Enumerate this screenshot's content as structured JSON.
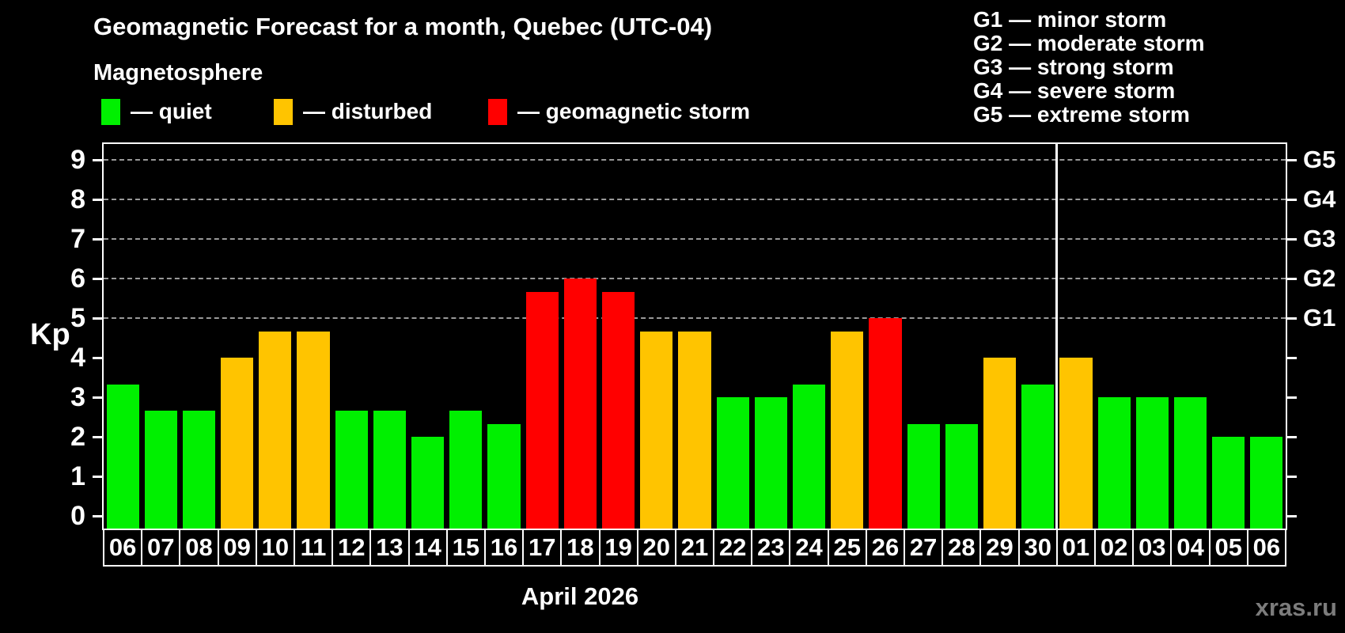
{
  "header": {
    "title": "Geomagnetic Forecast for a month, Quebec (UTC-04)",
    "subtitle": "Magnetosphere"
  },
  "legend": {
    "items": [
      {
        "label": "— quiet",
        "state": "quiet"
      },
      {
        "label": "— disturbed",
        "state": "disturbed"
      },
      {
        "label": "— geomagnetic storm",
        "state": "storm"
      }
    ]
  },
  "storm_scale_legend": {
    "items": [
      "G1 — minor storm",
      "G2 — moderate storm",
      "G3 — strong storm",
      "G4 — severe storm",
      "G5 — extreme storm"
    ]
  },
  "colors": {
    "quiet": "#00f000",
    "disturbed": "#ffc400",
    "storm": "#ff0000",
    "grid": "#999999",
    "axis": "#ffffff",
    "background": "#000000",
    "watermark": "#7c7c7c"
  },
  "chart_data": {
    "type": "bar",
    "title": "Geomagnetic Forecast for a month, Quebec (UTC-04)",
    "subtitle": "Magnetosphere",
    "xlabel": "April 2026",
    "ylabel": "Kp",
    "ylim": [
      0,
      9
    ],
    "y_ticks": [
      0,
      1,
      2,
      3,
      4,
      5,
      6,
      7,
      8,
      9
    ],
    "gridlines_at": [
      5,
      6,
      7,
      8,
      9
    ],
    "grid": "horizontal dashed lines at Kp 5-9 only",
    "legend_position": "top-left",
    "right_axis": {
      "labels": [
        {
          "kp": 5,
          "label": "G1"
        },
        {
          "kp": 6,
          "label": "G2"
        },
        {
          "kp": 7,
          "label": "G3"
        },
        {
          "kp": 8,
          "label": "G4"
        },
        {
          "kp": 9,
          "label": "G5"
        }
      ]
    },
    "month_divider_after_index": 24,
    "bars": [
      {
        "day": "06",
        "kp": 3.33,
        "state": "quiet"
      },
      {
        "day": "07",
        "kp": 2.67,
        "state": "quiet"
      },
      {
        "day": "08",
        "kp": 2.67,
        "state": "quiet"
      },
      {
        "day": "09",
        "kp": 4.0,
        "state": "disturbed"
      },
      {
        "day": "10",
        "kp": 4.67,
        "state": "disturbed"
      },
      {
        "day": "11",
        "kp": 4.67,
        "state": "disturbed"
      },
      {
        "day": "12",
        "kp": 2.67,
        "state": "quiet"
      },
      {
        "day": "13",
        "kp": 2.67,
        "state": "quiet"
      },
      {
        "day": "14",
        "kp": 2.0,
        "state": "quiet"
      },
      {
        "day": "15",
        "kp": 2.67,
        "state": "quiet"
      },
      {
        "day": "16",
        "kp": 2.33,
        "state": "quiet"
      },
      {
        "day": "17",
        "kp": 5.67,
        "state": "storm"
      },
      {
        "day": "18",
        "kp": 6.0,
        "state": "storm"
      },
      {
        "day": "19",
        "kp": 5.67,
        "state": "storm"
      },
      {
        "day": "20",
        "kp": 4.67,
        "state": "disturbed"
      },
      {
        "day": "21",
        "kp": 4.67,
        "state": "disturbed"
      },
      {
        "day": "22",
        "kp": 3.0,
        "state": "quiet"
      },
      {
        "day": "23",
        "kp": 3.0,
        "state": "quiet"
      },
      {
        "day": "24",
        "kp": 3.33,
        "state": "quiet"
      },
      {
        "day": "25",
        "kp": 4.67,
        "state": "disturbed"
      },
      {
        "day": "26",
        "kp": 5.0,
        "state": "storm"
      },
      {
        "day": "27",
        "kp": 2.33,
        "state": "quiet"
      },
      {
        "day": "28",
        "kp": 2.33,
        "state": "quiet"
      },
      {
        "day": "29",
        "kp": 4.0,
        "state": "disturbed"
      },
      {
        "day": "30",
        "kp": 3.33,
        "state": "quiet"
      },
      {
        "day": "01",
        "kp": 4.0,
        "state": "disturbed"
      },
      {
        "day": "02",
        "kp": 3.0,
        "state": "quiet"
      },
      {
        "day": "03",
        "kp": 3.0,
        "state": "quiet"
      },
      {
        "day": "04",
        "kp": 3.0,
        "state": "quiet"
      },
      {
        "day": "05",
        "kp": 2.0,
        "state": "quiet"
      },
      {
        "day": "06",
        "kp": 2.0,
        "state": "quiet"
      }
    ]
  },
  "x_axis": {
    "month_label": "April 2026"
  },
  "y_axis": {
    "label": "Kp"
  },
  "watermark": "xras.ru"
}
